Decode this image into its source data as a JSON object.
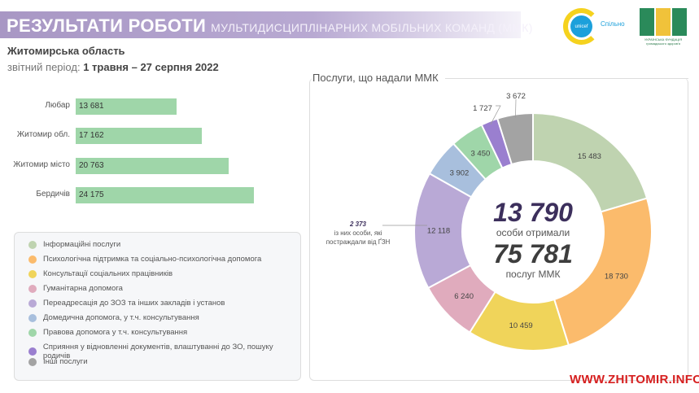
{
  "header": {
    "title": "РЕЗУЛЬТАТИ РОБОТИ",
    "subtitle": "МУЛЬТИДИСЦИПЛІНАРНИХ МОБІЛЬНИХ КОМАНД (ММК)"
  },
  "logos": {
    "unicef": "unicef",
    "unicef_partner": "Спільно",
    "foundation": "УКРАЇНСЬКА ФУНДАЦІЯ громадського здоров'я"
  },
  "region": "Житомирська область",
  "period_label": "звітний період:",
  "period_value": "1 травня – 27 серпня 2022",
  "colors": {
    "bar": "#9fd6a9",
    "accent": "#3c2f5c"
  },
  "chart_data": [
    {
      "type": "bar",
      "orientation": "horizontal",
      "categories": [
        "Любар",
        "Житомир обл.",
        "Житомир місто",
        "Бердичів"
      ],
      "values": [
        13681,
        17162,
        20763,
        24175
      ],
      "value_labels": [
        "13 681",
        "17 162",
        "20 763",
        "24 175"
      ]
    },
    {
      "type": "pie",
      "title": "Послуги, що надали ММК",
      "donut": true,
      "categories": [
        "Інформаційні послуги",
        "Психологічна підтримка та соціально-психологічна допомога",
        "Консультації соціальних працівників",
        "Гуманітарна допомога",
        "Переадресація до ЗОЗ та інших закладів і установ",
        "Домедична допомога, у т.ч. консультування",
        "Правова допомога у т.ч. консультування",
        "Сприяння у відновленні документів, влаштуванні до ЗО, пошуку родичів",
        "Інші послуги"
      ],
      "values": [
        15483,
        18730,
        10459,
        6240,
        12118,
        3902,
        3450,
        1727,
        3672
      ],
      "value_labels": [
        "15 483",
        "18 730",
        "10 459",
        "6 240",
        "12 118",
        "3 902",
        "3 450",
        "1 727",
        "3 672"
      ],
      "colors": [
        "#bfd3b0",
        "#fbbb6c",
        "#f0d45a",
        "#e0abbd",
        "#b9a9d6",
        "#a8bfdd",
        "#9fd6a9",
        "#9a7fcf",
        "#a3a3a3"
      ],
      "legend_position": "left",
      "center": {
        "persons": "13 790",
        "persons_label": "особи отримали",
        "services": "75 781",
        "services_label": "послуг ММК"
      },
      "annotation": {
        "value": "2 373",
        "text": "із них особи, які постраждали від ҐЗН"
      }
    }
  ],
  "watermark": "WWW.ZHITOMIR.INFO"
}
